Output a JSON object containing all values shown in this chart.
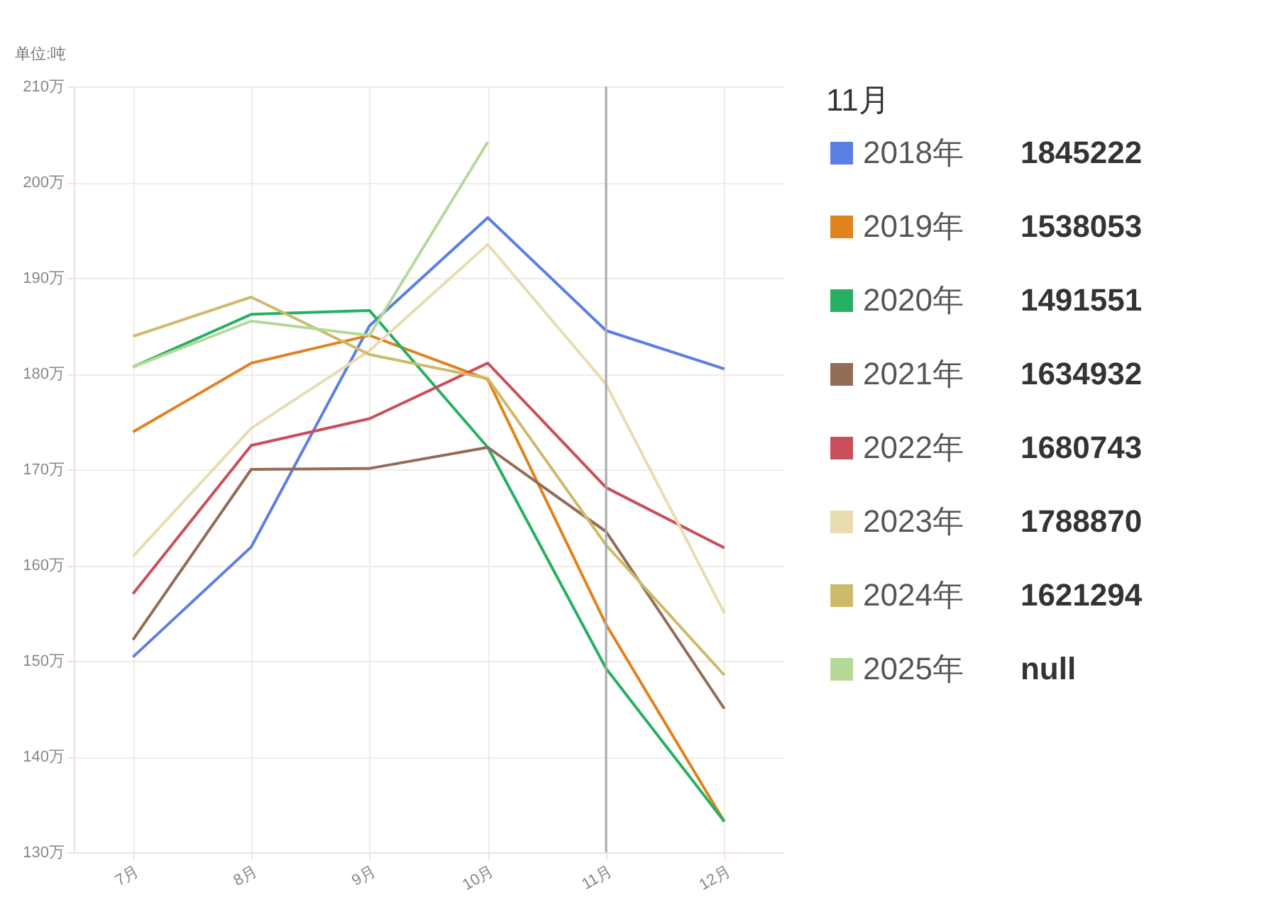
{
  "chart_data": {
    "type": "line",
    "ylabel": "单位:吨",
    "legend_title": "11月",
    "legend": "right",
    "grid": true,
    "categories": [
      "7月",
      "8月",
      "9月",
      "10月",
      "11月",
      "12月"
    ],
    "ylim": [
      130,
      210
    ],
    "yticks": [
      {
        "value": 130,
        "label": "130万"
      },
      {
        "value": 140,
        "label": "140万"
      },
      {
        "value": 150,
        "label": "150万"
      },
      {
        "value": 160,
        "label": "160万"
      },
      {
        "value": 170,
        "label": "170万"
      },
      {
        "value": 180,
        "label": "180万"
      },
      {
        "value": 190,
        "label": "190万"
      },
      {
        "value": 200,
        "label": "200万"
      },
      {
        "value": 210,
        "label": "210万"
      }
    ],
    "series": [
      {
        "name": "2018年",
        "color": "#5b7fe3",
        "values": [
          150.4,
          161.9,
          185.0,
          196.3,
          184.5,
          180.5
        ]
      },
      {
        "name": "2019年",
        "color": "#e0821e",
        "values": [
          173.9,
          181.1,
          184.0,
          179.4,
          153.8,
          133.2
        ]
      },
      {
        "name": "2020年",
        "color": "#27b062",
        "values": [
          180.7,
          186.2,
          186.6,
          172.3,
          149.2,
          133.2
        ]
      },
      {
        "name": "2021年",
        "color": "#936c58",
        "values": [
          152.2,
          170.0,
          170.1,
          172.3,
          163.5,
          145.0
        ]
      },
      {
        "name": "2022年",
        "color": "#c94f5a",
        "values": [
          157.0,
          172.5,
          175.3,
          181.1,
          168.1,
          161.8
        ]
      },
      {
        "name": "2023年",
        "color": "#e8dcb0",
        "values": [
          160.9,
          174.3,
          182.4,
          193.5,
          178.9,
          155.0
        ]
      },
      {
        "name": "2024年",
        "color": "#cdbb6b",
        "values": [
          183.9,
          188.0,
          182.0,
          179.5,
          162.1,
          148.5
        ]
      },
      {
        "name": "2025年",
        "color": "#b4d99a",
        "values": [
          180.7,
          185.5,
          184.0,
          204.2,
          null,
          null
        ]
      }
    ],
    "ref_lines": [
      {
        "axis": "x",
        "value": "11月",
        "color": "#aaaaaa"
      }
    ],
    "annotations": [
      "1845222",
      "1538053",
      "1491551",
      "1634932",
      "1680743",
      "1788870",
      "1621294",
      "null"
    ]
  }
}
